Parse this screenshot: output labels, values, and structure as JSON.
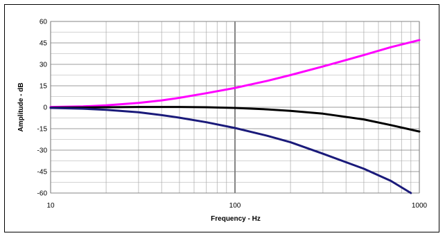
{
  "chart_data": {
    "type": "line",
    "title": "",
    "xlabel": "Frequency - Hz",
    "ylabel": "Amplitude - dB",
    "xscale": "log",
    "xlim": [
      10,
      1000
    ],
    "ylim": [
      -60,
      60
    ],
    "x_ticks": [
      "10",
      "100",
      "1000"
    ],
    "y_ticks": [
      "60",
      "45",
      "30",
      "15",
      "0",
      "-15",
      "-30",
      "-45",
      "-60"
    ],
    "grid": true,
    "legend": "none",
    "series": [
      {
        "color": "#ff00ff",
        "x": [
          10,
          15,
          20,
          30,
          40,
          50,
          70,
          100,
          150,
          200,
          300,
          500,
          700,
          1000
        ],
        "y": [
          0.2,
          0.6,
          1.3,
          3.0,
          4.8,
          6.6,
          9.8,
          13.5,
          18.5,
          22.5,
          28.5,
          36.5,
          42.0,
          47.0
        ]
      },
      {
        "color": "#000000",
        "x": [
          10,
          20,
          30,
          50,
          70,
          100,
          150,
          200,
          300,
          500,
          700,
          1000
        ],
        "y": [
          -0.3,
          0.0,
          0.2,
          0.2,
          0.0,
          -0.5,
          -1.5,
          -2.5,
          -4.5,
          -8.5,
          -12.5,
          -17.0
        ]
      },
      {
        "color": "#1a1a7a",
        "x": [
          10,
          15,
          20,
          30,
          40,
          50,
          70,
          100,
          150,
          200,
          300,
          500,
          700,
          900
        ],
        "y": [
          -0.5,
          -1.0,
          -1.8,
          -3.5,
          -5.5,
          -7.3,
          -10.5,
          -14.5,
          -20.0,
          -24.5,
          -32.5,
          -43.0,
          -51.5,
          -60.0
        ]
      }
    ]
  }
}
